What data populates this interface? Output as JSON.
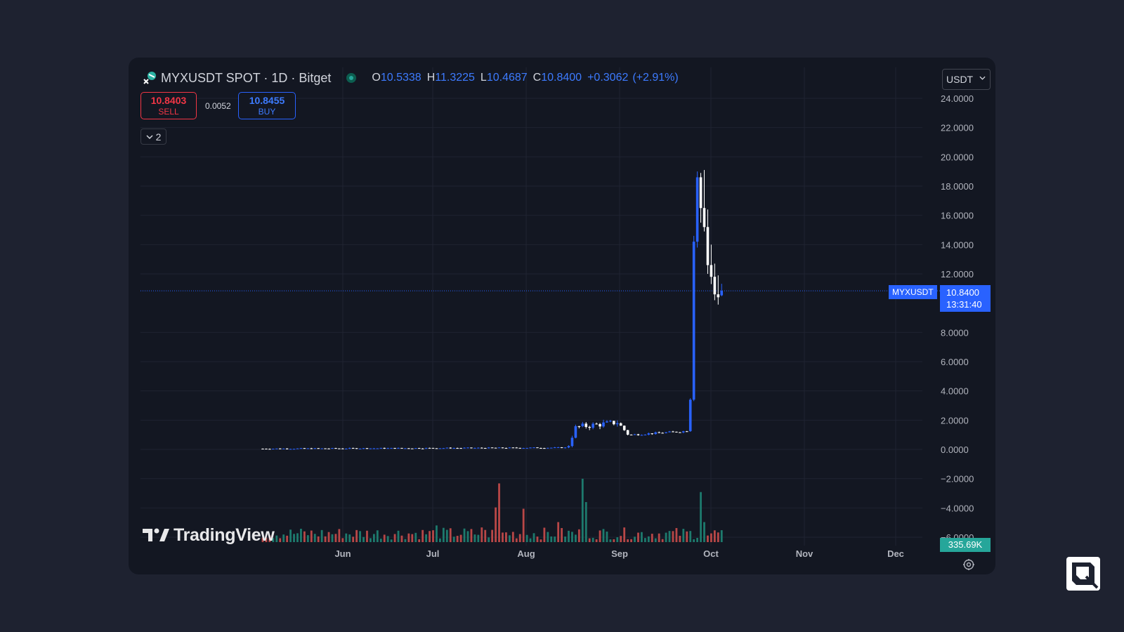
{
  "header": {
    "title": "MYXUSDT SPOT · 1D · Bitget",
    "open_label": "O",
    "open": "10.5338",
    "high_label": "H",
    "high": "11.3225",
    "low_label": "L",
    "low": "10.4687",
    "close_label": "C",
    "close": "10.8400",
    "change": "+0.3062",
    "change_pct": "(+2.91%)"
  },
  "trade": {
    "sell_price": "10.8403",
    "sell_label": "SELL",
    "spread": "0.0052",
    "buy_price": "10.8455",
    "buy_label": "BUY"
  },
  "indicators_toggle": {
    "count": "2"
  },
  "currency": "USDT",
  "price_tag": {
    "symbol": "MYXUSDT",
    "price": "10.8400",
    "countdown": "13:31:40"
  },
  "volume_tag": "335.69K",
  "watermark": "TradingView",
  "icons": {
    "symbol": "myx-logo-icon",
    "status": "market-open-icon",
    "collapse": "chevron-down-icon",
    "dropdown": "chevron-down-icon",
    "settings": "gear-icon",
    "watermark": "tradingview-logo-icon",
    "brand": "corner-brand-icon"
  },
  "colors": {
    "background": "#131722",
    "up_candle": "#2962ff",
    "down_candle": "#ffffff",
    "volume_up": "#1d7a6d",
    "volume_down": "#b84747",
    "last_price_line": "#2962ff",
    "grid": "#1f2331",
    "axis_text": "#b2b5be"
  },
  "chart_data": {
    "type": "candlestick",
    "y_axis": {
      "ticks": [
        "24.0000",
        "22.0000",
        "20.0000",
        "18.0000",
        "16.0000",
        "14.0000",
        "12.0000",
        "8.0000",
        "6.0000",
        "4.0000",
        "2.0000",
        "0.0000",
        "−2.0000",
        "−4.0000",
        "−6.0000"
      ],
      "range": [
        -6.3,
        24.5
      ]
    },
    "x_axis": {
      "ticks": [
        "Jun",
        "Jul",
        "Aug",
        "Sep",
        "Oct",
        "Nov",
        "Dec"
      ]
    },
    "last_price": 10.84,
    "series": [
      {
        "name": "MYXUSDT",
        "segments": [
          {
            "days": 88,
            "from": 0.05,
            "to": 0.12,
            "noise": 0.03
          },
          {
            "days": 3,
            "from": 0.3,
            "to": 1.5,
            "noise": 0.15
          },
          {
            "days": 12,
            "from": 1.55,
            "to": 1.85,
            "noise": 0.2
          },
          {
            "days": 3,
            "from": 1.6,
            "to": 1.05,
            "noise": 0.1
          },
          {
            "days": 17,
            "from": 1.0,
            "to": 1.25,
            "noise": 0.06
          }
        ],
        "tail": [
          {
            "o": 1.25,
            "h": 3.5,
            "l": 1.2,
            "c": 3.4
          },
          {
            "o": 3.4,
            "h": 14.6,
            "l": 3.3,
            "c": 14.2
          },
          {
            "o": 14.2,
            "h": 19.0,
            "l": 13.8,
            "c": 18.6
          },
          {
            "o": 18.6,
            "h": 18.9,
            "l": 15.5,
            "c": 16.5
          },
          {
            "o": 16.5,
            "h": 19.1,
            "l": 14.9,
            "c": 15.2
          },
          {
            "o": 15.2,
            "h": 16.4,
            "l": 12.0,
            "c": 12.6
          },
          {
            "o": 12.6,
            "h": 14.0,
            "l": 11.3,
            "c": 11.8
          },
          {
            "o": 11.8,
            "h": 12.7,
            "l": 10.2,
            "c": 10.6
          },
          {
            "o": 10.6,
            "h": 11.9,
            "l": 9.9,
            "c": 10.4
          },
          {
            "o": 10.5338,
            "h": 11.3225,
            "l": 10.4687,
            "c": 10.84
          }
        ]
      }
    ],
    "volume": {
      "unit": "K",
      "last": 335.69,
      "spikes": [
        {
          "day": 50,
          "v": 0.25,
          "up": true
        },
        {
          "day": 63,
          "v": 0.22,
          "up": false
        },
        {
          "day": 67,
          "v": 0.52,
          "up": false
        },
        {
          "day": 68,
          "v": 0.88,
          "up": false
        },
        {
          "day": 75,
          "v": 0.5,
          "up": false
        },
        {
          "day": 85,
          "v": 0.3,
          "up": false
        },
        {
          "day": 92,
          "v": 0.95,
          "up": true
        },
        {
          "day": 93,
          "v": 0.6,
          "up": true
        },
        {
          "day": 126,
          "v": 0.75,
          "up": true
        },
        {
          "day": 127,
          "v": 0.3,
          "up": true
        }
      ]
    }
  }
}
